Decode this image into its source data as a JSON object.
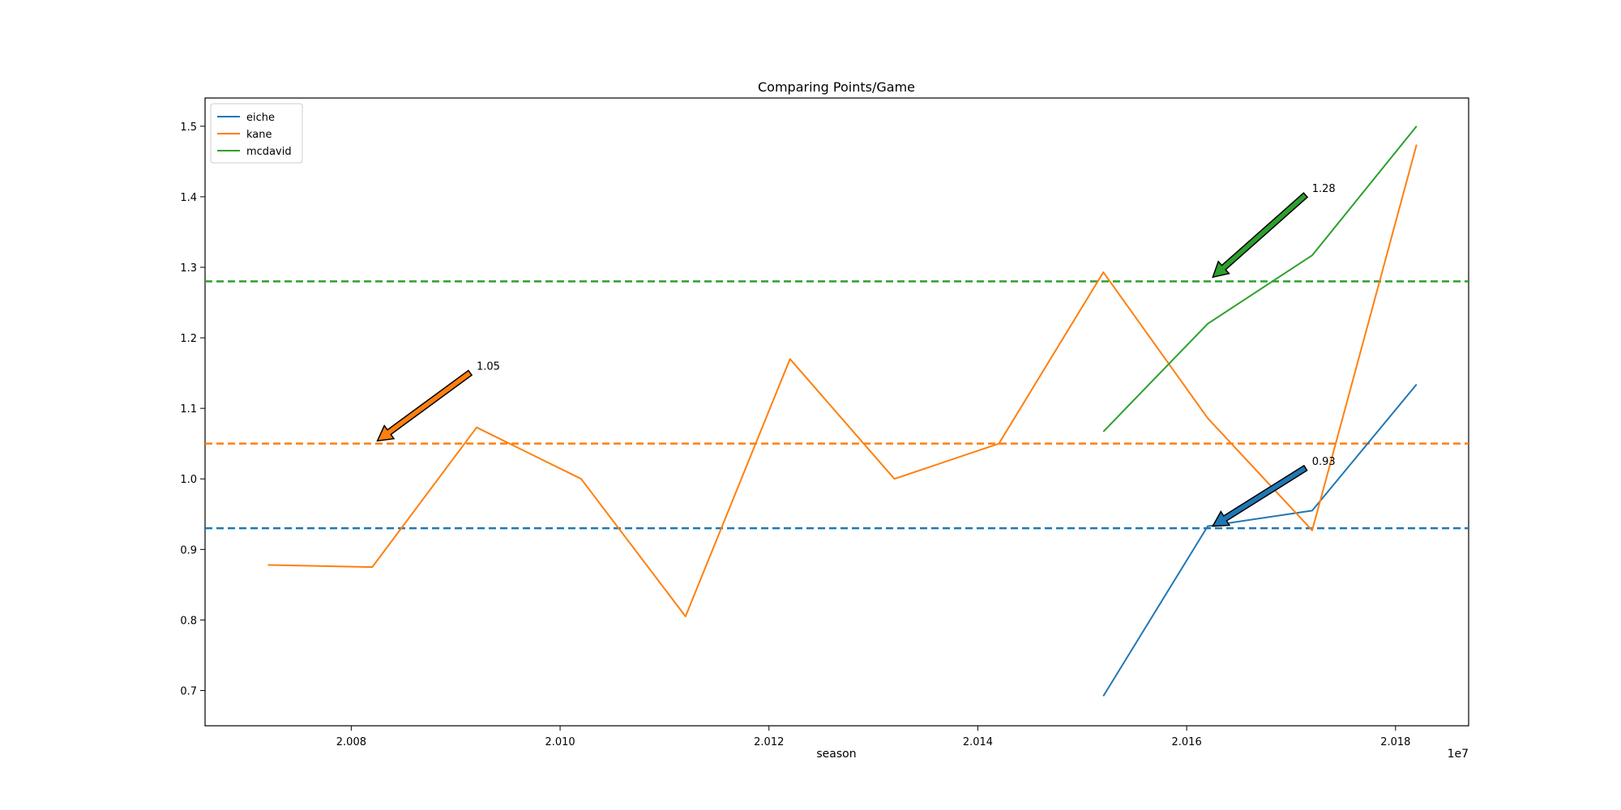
{
  "chart_data": {
    "type": "line",
    "title": "Comparing Points/Game",
    "xlabel": "season",
    "ylabel": "",
    "x_offset_text": "1e7",
    "xlim": [
      20066000,
      20187000
    ],
    "ylim": [
      0.65,
      1.54
    ],
    "x_ticks": [
      20080000,
      20100000,
      20120000,
      20140000,
      20160000,
      20180000
    ],
    "x_tick_labels": [
      "2.008",
      "2.010",
      "2.012",
      "2.014",
      "2.016",
      "2.018"
    ],
    "y_ticks": [
      0.7,
      0.8,
      0.9,
      1.0,
      1.1,
      1.2,
      1.3,
      1.4,
      1.5
    ],
    "y_tick_labels": [
      "0.7",
      "0.8",
      "0.9",
      "1.0",
      "1.1",
      "1.2",
      "1.3",
      "1.4",
      "1.5"
    ],
    "grid": false,
    "legend_position": "top-left",
    "series": [
      {
        "name": "eiche",
        "color": "#1f77b4",
        "x": [
          20152016,
          20162017,
          20172018,
          20182019
        ],
        "y": [
          0.692,
          0.933,
          0.955,
          1.134
        ]
      },
      {
        "name": "kane",
        "color": "#ff7f0e",
        "x": [
          20072008,
          20082009,
          20092010,
          20102011,
          20112012,
          20122013,
          20132014,
          20142015,
          20152016,
          20162017,
          20172018,
          20182019
        ],
        "y": [
          0.878,
          0.875,
          1.073,
          1.0,
          0.805,
          1.17,
          1.0,
          1.05,
          1.293,
          1.086,
          0.927,
          1.474
        ]
      },
      {
        "name": "mcdavid",
        "color": "#2ca02c",
        "x": [
          20152016,
          20162017,
          20172018,
          20182019
        ],
        "y": [
          1.067,
          1.22,
          1.317,
          1.5
        ]
      }
    ],
    "reference_lines": [
      {
        "series": "eiche",
        "y": 0.93,
        "color": "#1f77b4",
        "style": "dashed"
      },
      {
        "series": "kane",
        "y": 1.05,
        "color": "#ff7f0e",
        "style": "dashed"
      },
      {
        "series": "mcdavid",
        "y": 1.28,
        "color": "#2ca02c",
        "style": "dashed"
      }
    ],
    "annotations": [
      {
        "text": "0.93",
        "color": "#1f77b4",
        "point_x": 20162500,
        "point_y": 0.933,
        "text_x": 20172000,
        "text_y": 1.02
      },
      {
        "text": "1.05",
        "color": "#ff7f0e",
        "point_x": 20082500,
        "point_y": 1.054,
        "text_x": 20092000,
        "text_y": 1.155
      },
      {
        "text": "1.28",
        "color": "#2ca02c",
        "point_x": 20162500,
        "point_y": 1.286,
        "text_x": 20172000,
        "text_y": 1.407
      }
    ]
  }
}
